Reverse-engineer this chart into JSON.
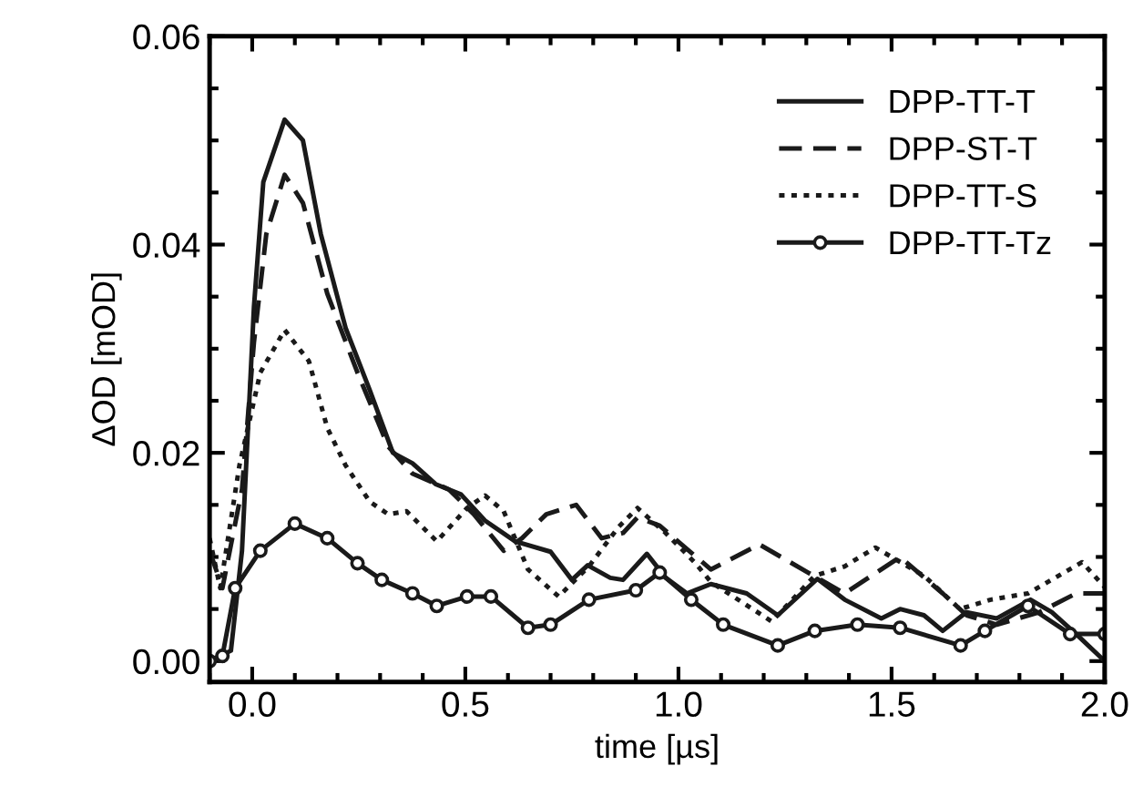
{
  "chart_data": {
    "type": "line",
    "xlabel": "time [µs]",
    "ylabel": "ΔOD [mOD]",
    "xlim": [
      -0.1,
      2.0
    ],
    "xticks": [
      {
        "value": 0,
        "label": "0.0"
      },
      0.5,
      {
        "value": 1,
        "label": "1.0"
      },
      1.5,
      {
        "value": 2,
        "label": "2.0"
      }
    ],
    "ylim": [
      -0.002,
      0.06
    ],
    "yticks": [
      {
        "value": 0,
        "label": "0.00"
      },
      {
        "value": 0.02,
        "label": "0.02"
      },
      {
        "value": 0.04,
        "label": "0.04"
      },
      {
        "value": 0.06,
        "label": "0.06"
      }
    ],
    "legend": "top right",
    "grid": false,
    "series": [
      {
        "name": "DPP-TT-T",
        "color": "#1a1a1a",
        "line_style": "solid",
        "marker": "none",
        "x": [
          -0.1,
          -0.05,
          -0.024,
          0.004,
          0.026,
          0.076,
          0.119,
          0.161,
          0.219,
          0.276,
          0.33,
          0.376,
          0.43,
          0.49,
          0.546,
          0.617,
          0.7,
          0.75,
          0.787,
          0.84,
          0.87,
          0.926,
          0.97,
          1.02,
          1.076,
          1.16,
          1.233,
          1.326,
          1.39,
          1.476,
          1.52,
          1.576,
          1.62,
          1.676,
          1.747,
          1.826,
          1.876,
          1.933,
          2.0
        ],
        "values": [
          0.0,
          0.001,
          0.0106,
          0.034,
          0.046,
          0.052,
          0.05,
          0.041,
          0.032,
          0.026,
          0.02,
          0.019,
          0.017,
          0.016,
          0.0135,
          0.0115,
          0.0105,
          0.0078,
          0.0092,
          0.008,
          0.0078,
          0.0103,
          0.008,
          0.0065,
          0.0074,
          0.0065,
          0.0044,
          0.0079,
          0.0059,
          0.0041,
          0.005,
          0.0044,
          0.0029,
          0.0047,
          0.0041,
          0.0059,
          0.0047,
          0.0026,
          0.0
        ]
      },
      {
        "name": "DPP-ST-T",
        "color": "#1a1a1a",
        "line_style": "dashed",
        "marker": "none",
        "x": [
          -0.1,
          -0.07,
          -0.024,
          0.004,
          0.033,
          0.076,
          0.119,
          0.176,
          0.247,
          0.319,
          0.376,
          0.461,
          0.52,
          0.59,
          0.633,
          0.69,
          0.76,
          0.82,
          0.87,
          0.904,
          0.956,
          1.076,
          1.19,
          1.304,
          1.39,
          1.52,
          1.62,
          1.676,
          1.747,
          1.847,
          1.933,
          2.0
        ],
        "values": [
          0.0106,
          0.007,
          0.0165,
          0.0306,
          0.041,
          0.0467,
          0.044,
          0.0353,
          0.0277,
          0.0206,
          0.018,
          0.0165,
          0.0141,
          0.0106,
          0.0118,
          0.0141,
          0.015,
          0.0118,
          0.0123,
          0.0138,
          0.013,
          0.0088,
          0.0112,
          0.0085,
          0.0065,
          0.01,
          0.0065,
          0.0044,
          0.0035,
          0.0047,
          0.0065,
          0.0065
        ]
      },
      {
        "name": "DPP-TT-S",
        "color": "#1a1a1a",
        "line_style": "dotted",
        "marker": "none",
        "x": [
          -0.1,
          -0.075,
          -0.03,
          0.019,
          0.076,
          0.133,
          0.176,
          0.219,
          0.276,
          0.319,
          0.362,
          0.433,
          0.504,
          0.546,
          0.59,
          0.647,
          0.719,
          0.79,
          0.86,
          0.904,
          0.97,
          1.04,
          1.076,
          1.219,
          1.32,
          1.39,
          1.462,
          1.576,
          1.66,
          1.733,
          1.82,
          1.947,
          2.0
        ],
        "values": [
          0.0118,
          0.007,
          0.0188,
          0.0277,
          0.0318,
          0.0288,
          0.0224,
          0.0188,
          0.0153,
          0.0141,
          0.0144,
          0.0115,
          0.0147,
          0.0159,
          0.0144,
          0.0088,
          0.0062,
          0.0091,
          0.0129,
          0.0147,
          0.0123,
          0.0094,
          0.0076,
          0.0038,
          0.0082,
          0.0091,
          0.0109,
          0.0082,
          0.005,
          0.0059,
          0.0065,
          0.0095,
          0.0071
        ]
      },
      {
        "name": "DPP-TT-Tz",
        "color": "#1a1a1a",
        "line_style": "solid",
        "marker": "circle",
        "x": [
          -0.1,
          -0.07,
          -0.04,
          0.019,
          0.1,
          0.176,
          0.247,
          0.304,
          0.376,
          0.433,
          0.504,
          0.56,
          0.647,
          0.7,
          0.79,
          0.9,
          0.956,
          1.03,
          1.105,
          1.233,
          1.32,
          1.42,
          1.52,
          1.662,
          1.719,
          1.82,
          1.919,
          2.0
        ],
        "values": [
          0.0,
          0.0005,
          0.007,
          0.0106,
          0.0132,
          0.0118,
          0.0094,
          0.0078,
          0.0065,
          0.0053,
          0.0062,
          0.0062,
          0.0032,
          0.0035,
          0.0059,
          0.0068,
          0.0085,
          0.0059,
          0.0035,
          0.0015,
          0.0029,
          0.0035,
          0.0032,
          0.0015,
          0.0029,
          0.0053,
          0.0026,
          0.0026
        ]
      }
    ]
  }
}
